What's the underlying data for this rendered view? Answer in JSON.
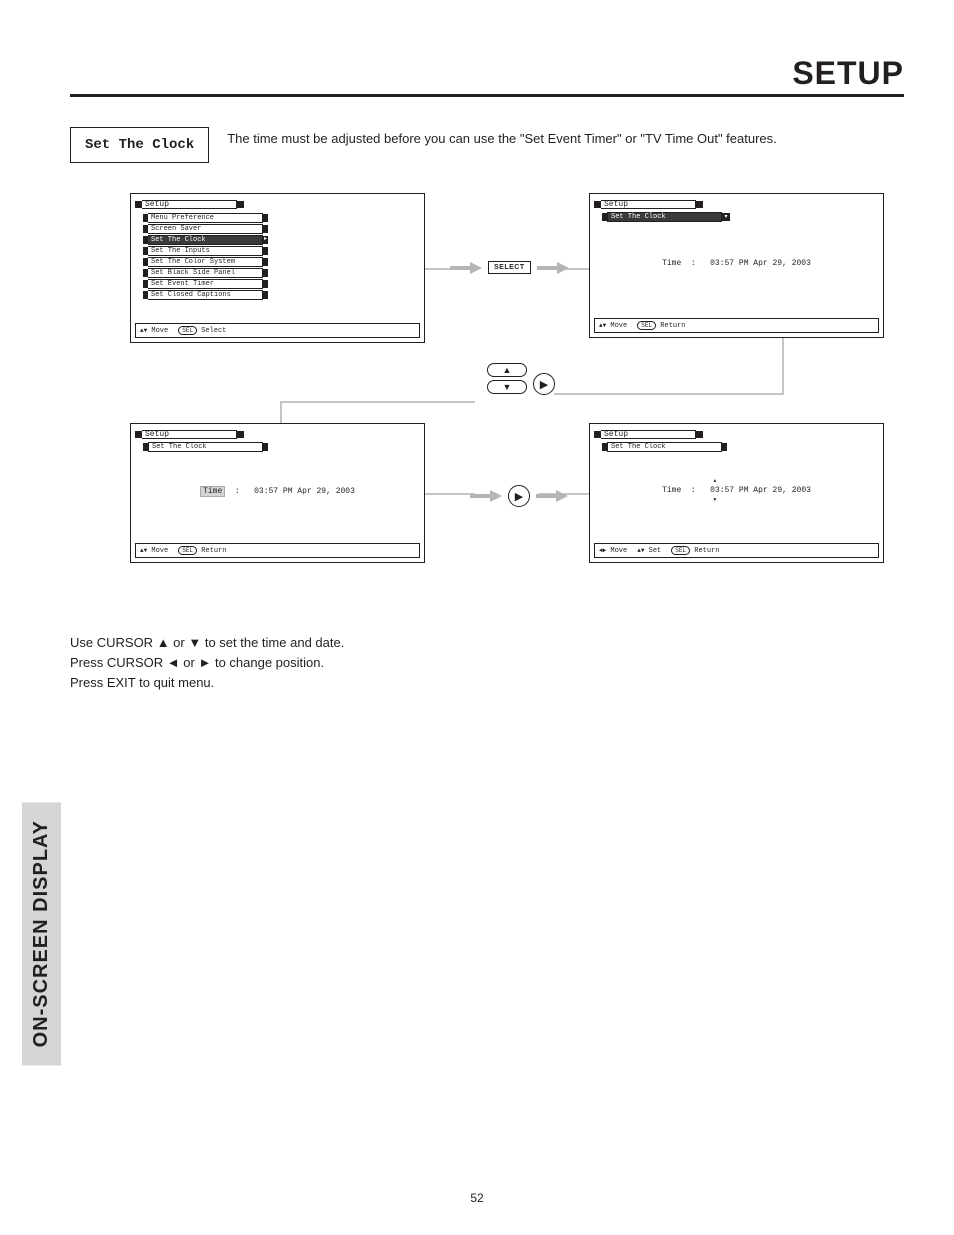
{
  "header": {
    "title": "SETUP"
  },
  "section": {
    "label": "Set The Clock"
  },
  "intro": "The time must be adjusted before you can use the \"Set Event Timer\" or \"TV Time Out\" features.",
  "panel_tl": {
    "title": "Setup",
    "items": [
      {
        "label": "Menu Preference",
        "selected": false
      },
      {
        "label": "Screen Saver",
        "selected": false
      },
      {
        "label": "Set The Clock",
        "selected": true
      },
      {
        "label": "Set The Inputs",
        "selected": false
      },
      {
        "label": "Set The Color System",
        "selected": false
      },
      {
        "label": "Set Black Side Panel",
        "selected": false
      },
      {
        "label": "Set Event Timer",
        "selected": false
      },
      {
        "label": "Set Closed Captions",
        "selected": false
      }
    ],
    "footer": {
      "move_sym": "▲▼",
      "move": "Move",
      "sel_btn": "SEL",
      "select": "Select"
    }
  },
  "panel_tr": {
    "title": "Setup",
    "sub": "Set The Clock",
    "time": {
      "prefix_label": "Time",
      "prefix_colon": ":",
      "value": "03:57 PM Apr 29, 2003"
    },
    "footer": {
      "move_sym": "▲▼",
      "move": "Move",
      "sel_btn": "SEL",
      "select": "Return"
    }
  },
  "panel_bl": {
    "title": "Setup",
    "sub": "Set The Clock",
    "time": {
      "prefix_label": "Time",
      "prefix_colon": ":",
      "value": "03:57 PM Apr 29, 2003"
    },
    "footer": {
      "move_sym": "▲▼",
      "move": "Move",
      "sel_btn": "SEL",
      "select": "Return"
    }
  },
  "panel_br": {
    "title": "Setup",
    "sub": "Set The Clock",
    "time": {
      "prefix_label": "Time",
      "prefix_colon": ":",
      "hh": "03",
      "rest": ":57 PM Apr 29, 2003"
    },
    "footer": {
      "move_sym": "◄►",
      "move": "Move",
      "set_sym": "▲▼",
      "set": "Set",
      "sel_btn": "SEL",
      "select": "Return"
    }
  },
  "buttons": {
    "select": "SELECT",
    "right": "▶",
    "up": "▲",
    "down": "▼"
  },
  "instructions": {
    "line1a": "Use CURSOR ",
    "line1b": " or ",
    "line1c": " to set the time and date.",
    "line2a": "Press CURSOR ",
    "line2b": " or ",
    "line2c": " to change position.",
    "line3": "Press EXIT to quit menu.",
    "up": "▲",
    "down": "▼",
    "left": "◄",
    "right": "►"
  },
  "sidebar": "ON-SCREEN DISPLAY",
  "page_number": "52"
}
